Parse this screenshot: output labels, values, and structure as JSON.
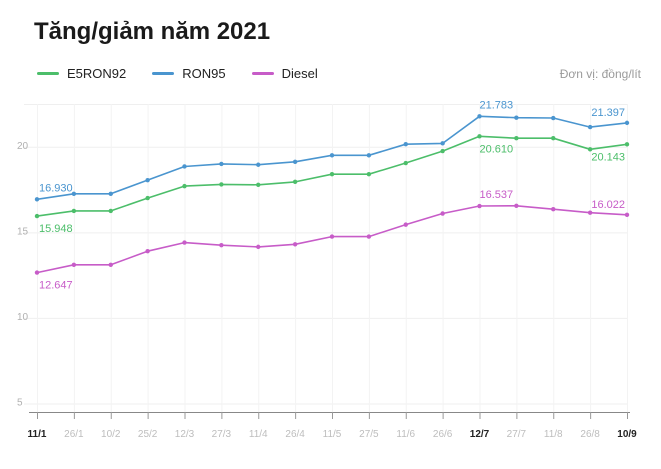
{
  "chart_data": {
    "type": "line",
    "title": "Tăng/giảm năm 2021",
    "unit_label": "Đơn vị: đồng/lít",
    "x": [
      "11/1",
      "26/1",
      "10/2",
      "25/2",
      "12/3",
      "27/3",
      "11/4",
      "26/4",
      "11/5",
      "27/5",
      "11/6",
      "26/6",
      "12/7",
      "27/7",
      "11/8",
      "26/8",
      "10/9"
    ],
    "x_bold": [
      "11/1",
      "12/7",
      "10/9"
    ],
    "y_ticks": [
      5,
      10,
      15,
      20
    ],
    "ylim": [
      4.5,
      22.5
    ],
    "grid": true,
    "legend_position": "top-left",
    "series": [
      {
        "name": "E5RON92",
        "color": "#4cbe6a",
        "values": [
          15.948,
          16.25,
          16.25,
          17.0,
          17.7,
          17.8,
          17.78,
          17.95,
          18.4,
          18.4,
          19.05,
          19.75,
          20.61,
          20.5,
          20.5,
          19.85,
          20.143
        ],
        "labels": [
          {
            "index": 0,
            "text": "15.948",
            "pos": "below"
          },
          {
            "index": 12,
            "text": "20.610",
            "pos": "below"
          },
          {
            "index": 16,
            "text": "20.143",
            "pos": "below-left"
          }
        ]
      },
      {
        "name": "RON95",
        "color": "#4a95cf",
        "values": [
          16.93,
          17.25,
          17.25,
          18.05,
          18.85,
          19.0,
          18.95,
          19.12,
          19.5,
          19.5,
          20.15,
          20.2,
          21.783,
          21.7,
          21.68,
          21.15,
          21.397
        ],
        "labels": [
          {
            "index": 0,
            "text": "16.930",
            "pos": "above"
          },
          {
            "index": 12,
            "text": "21.783",
            "pos": "above"
          },
          {
            "index": 16,
            "text": "21.397",
            "pos": "above-left"
          }
        ]
      },
      {
        "name": "Diesel",
        "color": "#c75cc8",
        "values": [
          12.647,
          13.1,
          13.1,
          13.9,
          14.4,
          14.25,
          14.15,
          14.3,
          14.75,
          14.75,
          15.45,
          16.1,
          16.537,
          16.55,
          16.35,
          16.15,
          16.022
        ],
        "labels": [
          {
            "index": 0,
            "text": "12.647",
            "pos": "below"
          },
          {
            "index": 12,
            "text": "16.537",
            "pos": "above"
          },
          {
            "index": 16,
            "text": "16.022",
            "pos": "above-left"
          }
        ]
      }
    ]
  }
}
